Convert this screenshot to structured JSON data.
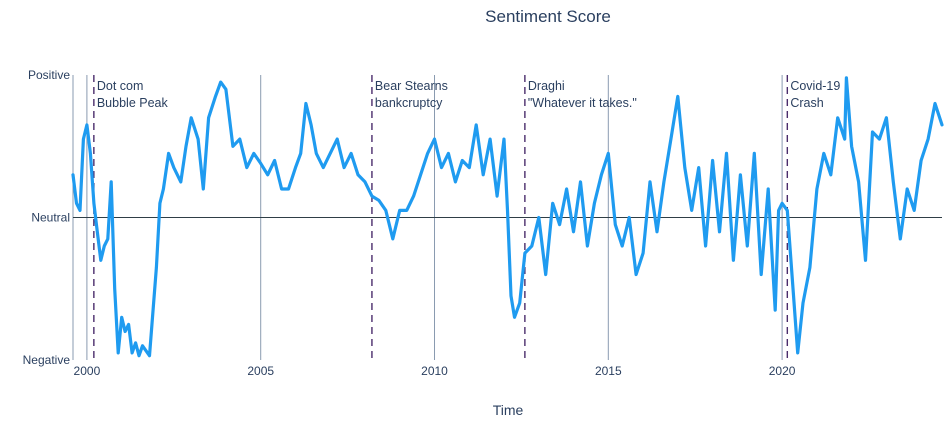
{
  "chart_data": {
    "type": "line",
    "title": "Sentiment Score",
    "xlabel": "Time",
    "ylabel": "",
    "xlim": [
      1999.6,
      2024.6
    ],
    "ylim": [
      -1,
      1
    ],
    "x_ticks": [
      {
        "value": 2000,
        "label": "2000"
      },
      {
        "value": 2005,
        "label": "2005"
      },
      {
        "value": 2010,
        "label": "2010"
      },
      {
        "value": 2015,
        "label": "2015"
      },
      {
        "value": 2020,
        "label": "2020"
      }
    ],
    "y_ticks": [
      {
        "value": 1,
        "label": "Positive"
      },
      {
        "value": 0,
        "label": "Neutral"
      },
      {
        "value": -1,
        "label": "Negative"
      }
    ],
    "events": [
      {
        "date": 2000.2,
        "lines": [
          "Dot com",
          "Bubble Peak"
        ]
      },
      {
        "date": 2008.2,
        "lines": [
          "Bear Stearns",
          "bankcruptcy"
        ]
      },
      {
        "date": 2012.6,
        "lines": [
          "Draghi",
          "\"Whatever it takes.\""
        ]
      },
      {
        "date": 2020.15,
        "lines": [
          "Covid-19",
          "Crash"
        ]
      }
    ],
    "series": [
      {
        "name": "Sentiment Score",
        "color": "#1f9bf0",
        "points": [
          [
            1999.6,
            0.3
          ],
          [
            1999.7,
            0.1
          ],
          [
            1999.8,
            0.05
          ],
          [
            1999.9,
            0.55
          ],
          [
            2000.0,
            0.65
          ],
          [
            2000.1,
            0.45
          ],
          [
            2000.2,
            0.1
          ],
          [
            2000.3,
            -0.1
          ],
          [
            2000.4,
            -0.3
          ],
          [
            2000.5,
            -0.2
          ],
          [
            2000.6,
            -0.15
          ],
          [
            2000.7,
            0.25
          ],
          [
            2000.8,
            -0.5
          ],
          [
            2000.9,
            -0.95
          ],
          [
            2001.0,
            -0.7
          ],
          [
            2001.1,
            -0.8
          ],
          [
            2001.2,
            -0.75
          ],
          [
            2001.3,
            -0.95
          ],
          [
            2001.4,
            -0.88
          ],
          [
            2001.5,
            -0.97
          ],
          [
            2001.6,
            -0.9
          ],
          [
            2001.8,
            -0.97
          ],
          [
            2002.0,
            -0.35
          ],
          [
            2002.1,
            0.1
          ],
          [
            2002.2,
            0.2
          ],
          [
            2002.35,
            0.45
          ],
          [
            2002.5,
            0.35
          ],
          [
            2002.7,
            0.25
          ],
          [
            2002.85,
            0.5
          ],
          [
            2003.0,
            0.7
          ],
          [
            2003.2,
            0.55
          ],
          [
            2003.35,
            0.2
          ],
          [
            2003.5,
            0.7
          ],
          [
            2003.7,
            0.85
          ],
          [
            2003.85,
            0.95
          ],
          [
            2004.0,
            0.9
          ],
          [
            2004.2,
            0.5
          ],
          [
            2004.4,
            0.55
          ],
          [
            2004.6,
            0.35
          ],
          [
            2004.8,
            0.45
          ],
          [
            2005.0,
            0.38
          ],
          [
            2005.2,
            0.3
          ],
          [
            2005.4,
            0.4
          ],
          [
            2005.6,
            0.2
          ],
          [
            2005.8,
            0.2
          ],
          [
            2006.0,
            0.35
          ],
          [
            2006.15,
            0.45
          ],
          [
            2006.3,
            0.8
          ],
          [
            2006.45,
            0.65
          ],
          [
            2006.6,
            0.45
          ],
          [
            2006.8,
            0.35
          ],
          [
            2007.0,
            0.45
          ],
          [
            2007.2,
            0.55
          ],
          [
            2007.4,
            0.35
          ],
          [
            2007.6,
            0.45
          ],
          [
            2007.8,
            0.3
          ],
          [
            2008.0,
            0.25
          ],
          [
            2008.2,
            0.15
          ],
          [
            2008.4,
            0.12
          ],
          [
            2008.6,
            0.05
          ],
          [
            2008.8,
            -0.15
          ],
          [
            2009.0,
            0.05
          ],
          [
            2009.2,
            0.05
          ],
          [
            2009.4,
            0.15
          ],
          [
            2009.6,
            0.3
          ],
          [
            2009.8,
            0.45
          ],
          [
            2010.0,
            0.55
          ],
          [
            2010.2,
            0.35
          ],
          [
            2010.4,
            0.45
          ],
          [
            2010.6,
            0.25
          ],
          [
            2010.8,
            0.4
          ],
          [
            2011.0,
            0.35
          ],
          [
            2011.2,
            0.65
          ],
          [
            2011.4,
            0.3
          ],
          [
            2011.6,
            0.55
          ],
          [
            2011.8,
            0.15
          ],
          [
            2012.0,
            0.55
          ],
          [
            2012.1,
            0.05
          ],
          [
            2012.2,
            -0.55
          ],
          [
            2012.3,
            -0.7
          ],
          [
            2012.45,
            -0.6
          ],
          [
            2012.6,
            -0.25
          ],
          [
            2012.8,
            -0.2
          ],
          [
            2013.0,
            0.0
          ],
          [
            2013.2,
            -0.4
          ],
          [
            2013.4,
            0.1
          ],
          [
            2013.6,
            -0.05
          ],
          [
            2013.8,
            0.2
          ],
          [
            2014.0,
            -0.1
          ],
          [
            2014.2,
            0.25
          ],
          [
            2014.4,
            -0.2
          ],
          [
            2014.6,
            0.1
          ],
          [
            2014.8,
            0.3
          ],
          [
            2015.0,
            0.45
          ],
          [
            2015.2,
            -0.05
          ],
          [
            2015.4,
            -0.2
          ],
          [
            2015.6,
            0.0
          ],
          [
            2015.8,
            -0.4
          ],
          [
            2016.0,
            -0.25
          ],
          [
            2016.2,
            0.25
          ],
          [
            2016.4,
            -0.1
          ],
          [
            2016.6,
            0.25
          ],
          [
            2016.8,
            0.55
          ],
          [
            2017.0,
            0.85
          ],
          [
            2017.2,
            0.35
          ],
          [
            2017.4,
            0.05
          ],
          [
            2017.6,
            0.35
          ],
          [
            2017.8,
            -0.2
          ],
          [
            2018.0,
            0.4
          ],
          [
            2018.2,
            -0.1
          ],
          [
            2018.4,
            0.45
          ],
          [
            2018.6,
            -0.3
          ],
          [
            2018.8,
            0.3
          ],
          [
            2019.0,
            -0.2
          ],
          [
            2019.2,
            0.45
          ],
          [
            2019.4,
            -0.4
          ],
          [
            2019.6,
            0.2
          ],
          [
            2019.8,
            -0.65
          ],
          [
            2019.9,
            0.05
          ],
          [
            2020.0,
            0.1
          ],
          [
            2020.15,
            0.05
          ],
          [
            2020.3,
            -0.45
          ],
          [
            2020.45,
            -0.95
          ],
          [
            2020.6,
            -0.6
          ],
          [
            2020.8,
            -0.35
          ],
          [
            2021.0,
            0.2
          ],
          [
            2021.2,
            0.45
          ],
          [
            2021.4,
            0.3
          ],
          [
            2021.6,
            0.7
          ],
          [
            2021.8,
            0.55
          ],
          [
            2021.85,
            0.98
          ],
          [
            2022.0,
            0.5
          ],
          [
            2022.2,
            0.25
          ],
          [
            2022.4,
            -0.3
          ],
          [
            2022.6,
            0.6
          ],
          [
            2022.8,
            0.55
          ],
          [
            2023.0,
            0.7
          ],
          [
            2023.2,
            0.25
          ],
          [
            2023.4,
            -0.15
          ],
          [
            2023.6,
            0.2
          ],
          [
            2023.8,
            0.05
          ],
          [
            2024.0,
            0.4
          ],
          [
            2024.2,
            0.55
          ],
          [
            2024.4,
            0.8
          ],
          [
            2024.6,
            0.65
          ]
        ]
      }
    ]
  }
}
